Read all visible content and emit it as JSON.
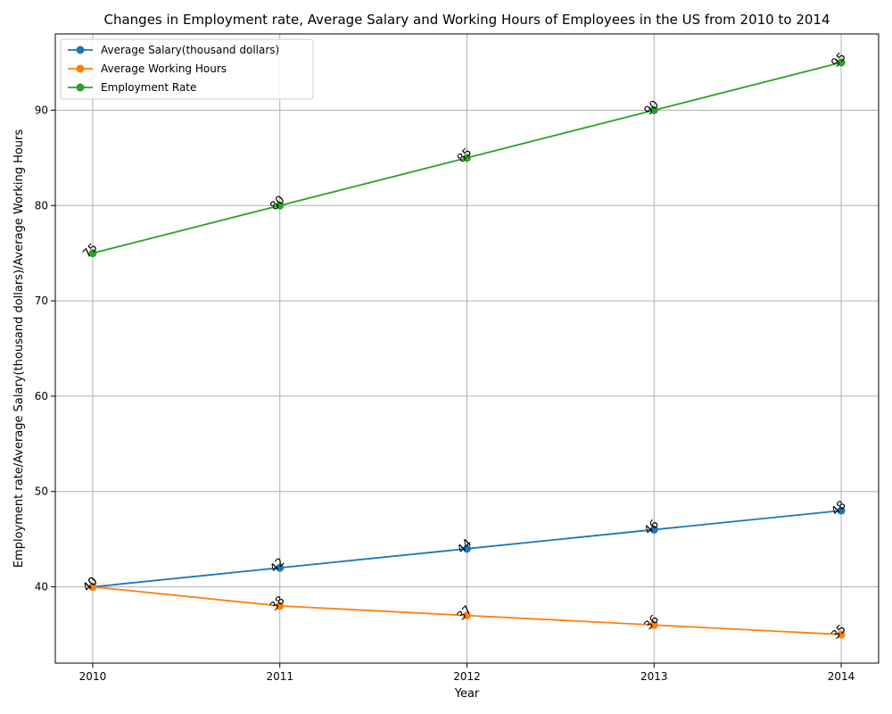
{
  "chart_data": {
    "type": "line",
    "title": "Changes in Employment rate, Average Salary and Working Hours of Employees in the US from 2010 to 2014",
    "xlabel": "Year",
    "ylabel": "Employment rate/Average Salary(thousand dollars)/Average Working Hours",
    "x": [
      "2010",
      "2011",
      "2012",
      "2013",
      "2014"
    ],
    "xlim": [
      2009.8,
      2014.2
    ],
    "ylim": [
      32.0,
      98.0
    ],
    "yticks": [
      40,
      50,
      60,
      70,
      80,
      90
    ],
    "grid": true,
    "legend_position": "top-left",
    "series": [
      {
        "name": "Average Salary(thousand dollars)",
        "color": "#1f77b4",
        "values": [
          40,
          42,
          44,
          46,
          48
        ]
      },
      {
        "name": "Average Working Hours",
        "color": "#ff7f0e",
        "values": [
          40,
          38,
          37,
          36,
          35
        ]
      },
      {
        "name": "Employment Rate",
        "color": "#2ca02c",
        "values": [
          75,
          80,
          85,
          90,
          95
        ]
      }
    ]
  }
}
